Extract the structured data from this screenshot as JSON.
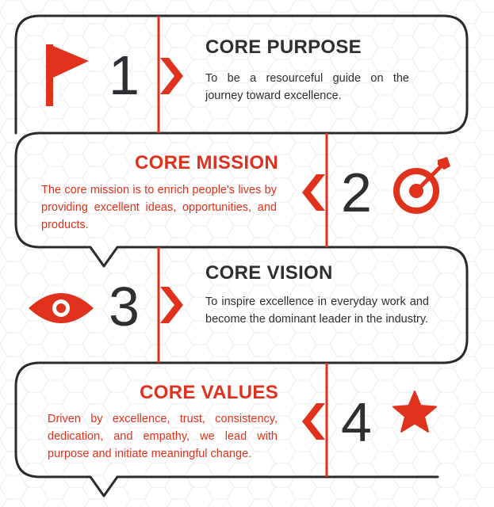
{
  "colors": {
    "accent": "#e0311c",
    "dark": "#2e2e33",
    "frame": "#2b2b2b",
    "hexagon_pattern": "#e9e9e9"
  },
  "items": [
    {
      "number": "1",
      "title": "CORE PURPOSE",
      "text": "To be a resourceful guide on the journey toward excellence.",
      "icon": "flag-icon"
    },
    {
      "number": "2",
      "title": "CORE MISSION",
      "text": "The core mission is to enrich people's lives by providing excellent ideas, opportunities, and products.",
      "icon": "target-arrow-icon"
    },
    {
      "number": "3",
      "title": "CORE VISION",
      "text": "To inspire excellence in everyday work and become the dominant leader in the industry.",
      "icon": "eye-icon"
    },
    {
      "number": "4",
      "title": "CORE VALUES",
      "text": "Driven by excellence, trust, consistency, dedication, and empathy, we lead with purpose and initiate meaningful change.",
      "icon": "star-icon"
    }
  ]
}
